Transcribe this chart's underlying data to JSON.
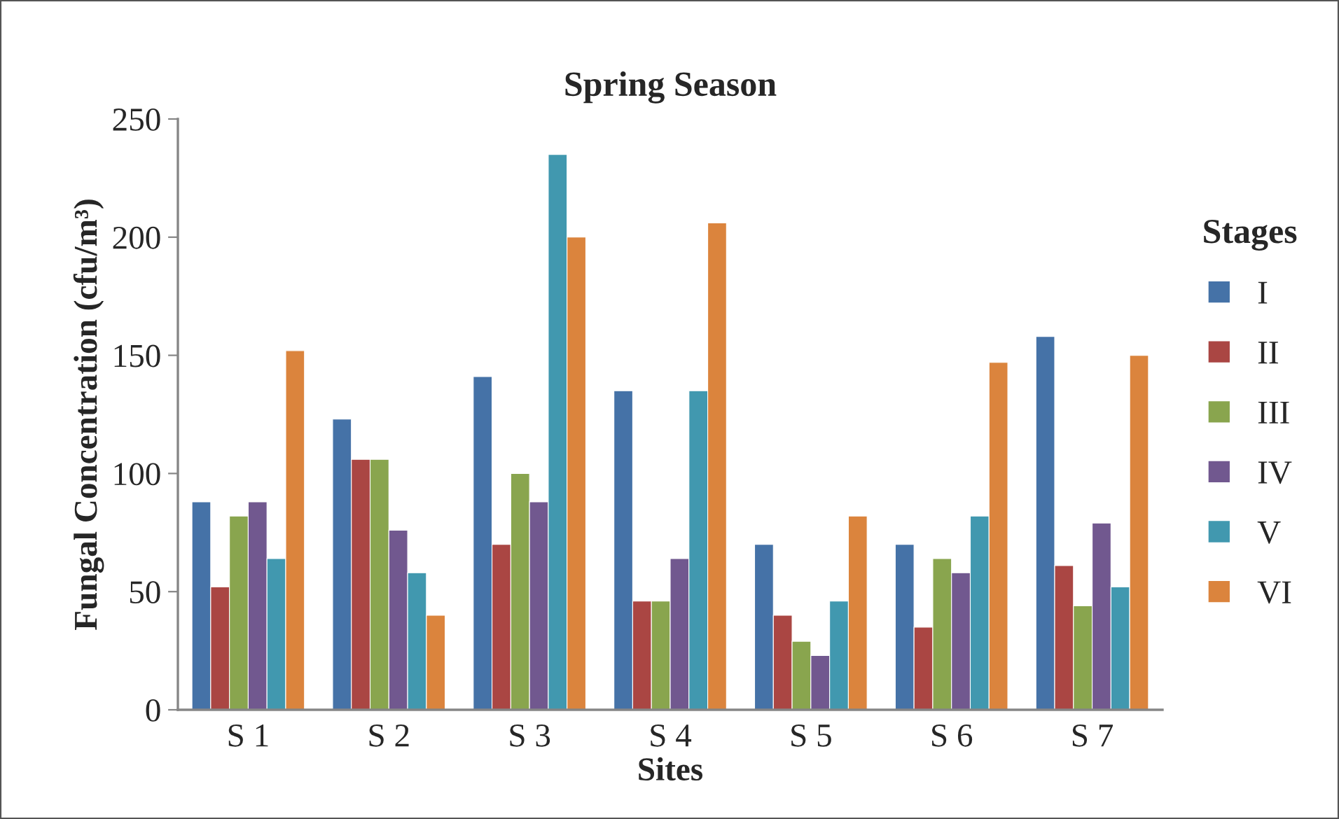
{
  "chart_data": {
    "type": "bar",
    "title": "Spring Season",
    "xlabel": "Sites",
    "ylabel": "Fungal Concentration (cfu/m³)",
    "legend_title": "Stages",
    "categories": [
      "S 1",
      "S 2",
      "S 3",
      "S 4",
      "S 5",
      "S 6",
      "S 7"
    ],
    "series": [
      {
        "name": "I",
        "color": "#4572a7",
        "values": [
          88,
          123,
          141,
          135,
          70,
          70,
          158
        ]
      },
      {
        "name": "II",
        "color": "#aa4643",
        "values": [
          52,
          106,
          70,
          46,
          40,
          35,
          61
        ]
      },
      {
        "name": "III",
        "color": "#89a54e",
        "values": [
          82,
          106,
          100,
          46,
          29,
          64,
          44
        ]
      },
      {
        "name": "IV",
        "color": "#71588f",
        "values": [
          88,
          76,
          88,
          64,
          23,
          58,
          79
        ]
      },
      {
        "name": "V",
        "color": "#4198af",
        "values": [
          64,
          58,
          235,
          135,
          46,
          82,
          52
        ]
      },
      {
        "name": "VI",
        "color": "#db843d",
        "values": [
          152,
          40,
          200,
          206,
          82,
          147,
          150
        ]
      }
    ],
    "ylim": [
      0,
      250
    ],
    "yticks": [
      0,
      50,
      100,
      150,
      200,
      250
    ],
    "grid": false,
    "legend": "right"
  }
}
